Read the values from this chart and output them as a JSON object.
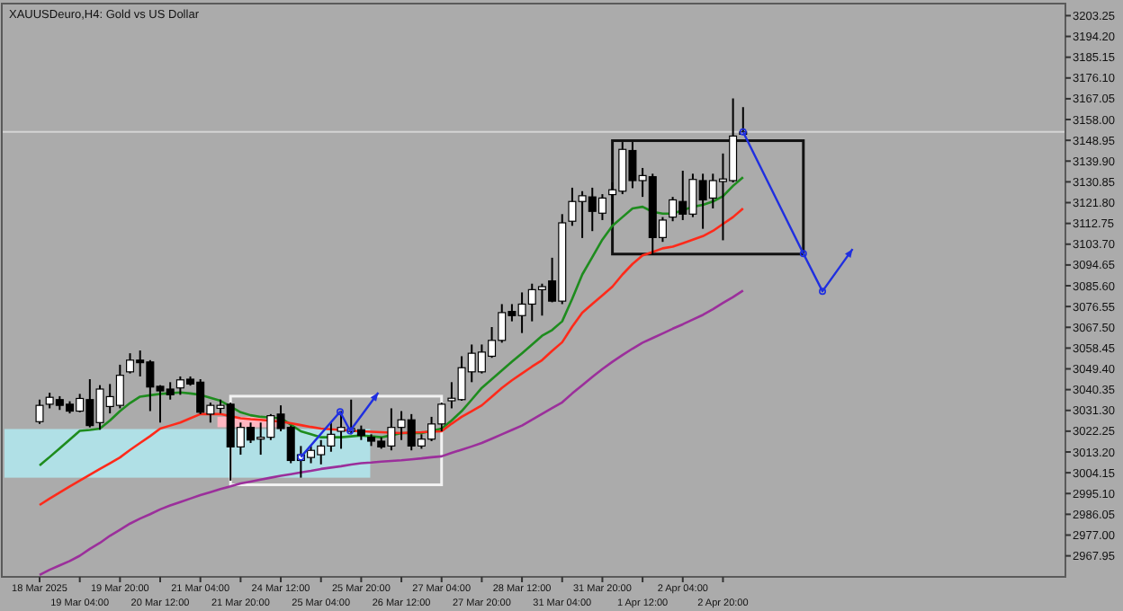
{
  "chart_data": {
    "type": "candlestick",
    "title": "XAUUSDeuro,H4: Gold vs US Dollar",
    "categories": [
      "18 Mar 2025",
      null,
      null,
      null,
      "19 Mar 04:00",
      null,
      null,
      null,
      "19 Mar 20:00",
      null,
      null,
      null,
      "20 Mar 12:00",
      null,
      null,
      null,
      "21 Mar 04:00",
      null,
      null,
      null,
      "21 Mar 20:00",
      null,
      null,
      null,
      "24 Mar 12:00",
      null,
      null,
      null,
      "25 Mar 04:00",
      null,
      null,
      null,
      "25 Mar 20:00",
      null,
      null,
      null,
      "26 Mar 12:00",
      null,
      null,
      null,
      "27 Mar 04:00",
      null,
      null,
      null,
      "27 Mar 20:00",
      null,
      null,
      null,
      "28 Mar 12:00",
      null,
      null,
      null,
      "31 Mar 04:00",
      null,
      null,
      null,
      "31 Mar 20:00",
      null,
      null,
      null,
      "1 Apr 12:00",
      null,
      null,
      null,
      "2 Apr 04:00",
      null,
      null,
      null,
      "2 Apr 20:00",
      null,
      null,
      null,
      null,
      null,
      null,
      null,
      null,
      null,
      null,
      null,
      null,
      null,
      null,
      null,
      null,
      null,
      null,
      null,
      null,
      null,
      null,
      null,
      null,
      null,
      null,
      null,
      null,
      null,
      null,
      null,
      null,
      null
    ],
    "ohlc": [
      [
        3026.4,
        3036.0,
        3025.4,
        3033.5
      ],
      [
        3034.0,
        3039.0,
        3032.2,
        3037.0
      ],
      [
        3036.0,
        3037.5,
        3031.5,
        3033.5
      ],
      [
        3034.0,
        3035.3,
        3030.0,
        3031.0
      ],
      [
        3031.0,
        3038.5,
        3030.5,
        3036.5
      ],
      [
        3036.0,
        3044.9,
        3023.9,
        3024.7
      ],
      [
        3026.0,
        3042.3,
        3022.9,
        3040.6
      ],
      [
        3033.0,
        3042.8,
        3030.0,
        3037.3
      ],
      [
        3033.5,
        3051.2,
        3032.2,
        3046.6
      ],
      [
        3048.1,
        3056.2,
        3047.4,
        3053.2
      ],
      [
        3053.2,
        3057.4,
        3046.1,
        3052.1
      ],
      [
        3052.4,
        3053.2,
        3031.0,
        3041.5
      ],
      [
        3041.8,
        3042.3,
        3026.0,
        3039.8
      ],
      [
        3040.6,
        3043.6,
        3036.0,
        3038.1
      ],
      [
        3041.1,
        3046.1,
        3038.1,
        3044.6
      ],
      [
        3044.9,
        3046.1,
        3042.1,
        3042.8
      ],
      [
        3043.6,
        3044.9,
        3029.7,
        3030.5
      ],
      [
        3029.7,
        3034.7,
        3026.0,
        3033.5
      ],
      [
        3032.2,
        3036.0,
        3030.0,
        3033.5
      ],
      [
        3034.0,
        3034.7,
        3000.7,
        3015.4
      ],
      [
        3015.4,
        3026.0,
        3012.0,
        3023.9
      ],
      [
        3023.9,
        3026.0,
        3017.1,
        3018.4
      ],
      [
        3018.8,
        3026.0,
        3012.0,
        3019.6
      ],
      [
        3019.6,
        3029.7,
        3018.4,
        3029.0
      ],
      [
        3029.7,
        3033.5,
        3022.2,
        3023.4
      ],
      [
        3023.9,
        3024.7,
        3008.3,
        3009.5
      ],
      [
        3009.5,
        3015.8,
        3002.0,
        3012.0
      ],
      [
        3010.8,
        3015.8,
        3008.3,
        3013.9
      ],
      [
        3012.0,
        3018.4,
        3007.8,
        3015.8
      ],
      [
        3015.8,
        3026.0,
        3013.3,
        3020.9
      ],
      [
        3022.2,
        3031.0,
        3014.6,
        3023.9
      ],
      [
        3022.2,
        3036.0,
        3020.9,
        3023.4
      ],
      [
        3022.9,
        3024.7,
        3018.4,
        3020.4
      ],
      [
        3019.6,
        3020.9,
        3015.8,
        3017.9
      ],
      [
        3017.9,
        3019.6,
        3014.6,
        3015.4
      ],
      [
        3015.8,
        3032.2,
        3013.9,
        3023.9
      ],
      [
        3023.9,
        3031.0,
        3018.4,
        3027.2
      ],
      [
        3027.2,
        3029.7,
        3013.9,
        3015.8
      ],
      [
        3015.8,
        3020.9,
        3014.6,
        3018.8
      ],
      [
        3018.8,
        3028.5,
        3017.9,
        3025.4
      ],
      [
        3025.4,
        3034.7,
        3022.2,
        3034.0
      ],
      [
        3035.5,
        3043.6,
        3032.2,
        3036.6
      ],
      [
        3036.0,
        3054.9,
        3035.5,
        3049.9
      ],
      [
        3048.1,
        3060.0,
        3043.6,
        3056.2
      ],
      [
        3048.1,
        3060.0,
        3047.4,
        3056.7
      ],
      [
        3054.9,
        3067.6,
        3054.2,
        3061.8
      ],
      [
        3061.8,
        3077.6,
        3060.8,
        3073.9
      ],
      [
        3074.4,
        3077.6,
        3070.1,
        3072.6
      ],
      [
        3072.6,
        3082.7,
        3065.0,
        3077.6
      ],
      [
        3077.6,
        3086.5,
        3070.1,
        3083.9
      ],
      [
        3083.9,
        3086.5,
        3072.6,
        3085.2
      ],
      [
        3087.7,
        3097.8,
        3078.4,
        3078.9
      ],
      [
        3078.9,
        3116.8,
        3077.6,
        3113.0
      ],
      [
        3113.7,
        3128.3,
        3111.7,
        3122.3
      ],
      [
        3122.3,
        3126.8,
        3106.4,
        3124.8
      ],
      [
        3124.3,
        3128.3,
        3109.4,
        3118.0
      ],
      [
        3117.2,
        3125.5,
        3114.2,
        3123.8
      ],
      [
        3125.3,
        3130.6,
        3114.0,
        3127.4
      ],
      [
        3126.8,
        3148.2,
        3125.5,
        3145.0
      ],
      [
        3144.5,
        3148.2,
        3128.1,
        3131.4
      ],
      [
        3131.4,
        3136.9,
        3124.3,
        3133.6
      ],
      [
        3133.1,
        3134.4,
        3099.1,
        3106.6
      ],
      [
        3106.6,
        3115.5,
        3104.7,
        3114.2
      ],
      [
        3115.5,
        3124.3,
        3113.7,
        3123.0
      ],
      [
        3122.3,
        3135.7,
        3114.2,
        3116.8
      ],
      [
        3116.8,
        3134.4,
        3115.5,
        3131.9
      ],
      [
        3131.4,
        3134.4,
        3110.4,
        3123.0
      ],
      [
        3123.8,
        3134.4,
        3119.3,
        3131.4
      ],
      [
        3131.0,
        3143.2,
        3105.4,
        3132.1
      ],
      [
        3131.4,
        3167.2,
        3130.6,
        3150.8
      ],
      [
        3151.6,
        3163.4,
        3151.6,
        3152.6
      ],
      null,
      null,
      null,
      null,
      null,
      null,
      null,
      null,
      null,
      null,
      null,
      null,
      null,
      null,
      null,
      null,
      null,
      null,
      null,
      null,
      null,
      null,
      null,
      null,
      null,
      null,
      null,
      null,
      null,
      null,
      null
    ],
    "series": [
      {
        "type": "line",
        "color": "#1e8c1e",
        "values": [
          3007.3,
          3011.0,
          3014.8,
          3018.6,
          3022.4,
          3022.8,
          3023.4,
          3026.9,
          3031.0,
          3034.5,
          3037.3,
          3037.9,
          3038.5,
          3038.8,
          3039.1,
          3038.7,
          3038.1,
          3036.8,
          3035.5,
          3033.0,
          3030.5,
          3029.2,
          3028.5,
          3028.2,
          3027.9,
          3025.1,
          3022.2,
          3020.9,
          3019.6,
          3019.6,
          3019.6,
          3020.0,
          3020.4,
          3020.0,
          3019.6,
          3020.5,
          3021.4,
          3021.4,
          3021.4,
          3022.4,
          3023.4,
          3026.9,
          3031.0,
          3036.0,
          3041.1,
          3044.9,
          3048.7,
          3052.5,
          3056.2,
          3060.0,
          3063.8,
          3066.3,
          3070.1,
          3079.9,
          3090.5,
          3098.1,
          3105.7,
          3111.7,
          3115.5,
          3119.3,
          3120.0,
          3117.8,
          3117.0,
          3117.0,
          3118.5,
          3120.0,
          3120.8,
          3122.3,
          3124.6,
          3129.1,
          3132.9,
          null,
          null,
          null,
          null,
          null,
          null,
          null,
          null,
          null,
          null,
          null,
          null,
          null,
          null,
          null,
          null,
          null,
          null,
          null,
          null,
          null,
          null,
          null,
          null,
          null,
          null,
          null,
          null,
          null,
          null,
          null
        ]
      },
      {
        "type": "line",
        "color": "#ff2a1a",
        "values": [
          2990.1,
          2992.9,
          2995.5,
          2998.2,
          3000.7,
          3003.3,
          3005.8,
          3008.3,
          3010.8,
          3014.1,
          3017.1,
          3020.1,
          3023.4,
          3024.7,
          3026.0,
          3027.9,
          3029.7,
          3029.7,
          3029.7,
          3028.8,
          3027.9,
          3027.5,
          3027.2,
          3026.8,
          3026.4,
          3025.7,
          3024.9,
          3024.1,
          3023.4,
          3023.1,
          3022.8,
          3022.5,
          3022.2,
          3022.0,
          3021.8,
          3021.6,
          3021.4,
          3021.7,
          3021.8,
          3022.0,
          3022.2,
          3025.5,
          3028.5,
          3031.0,
          3033.5,
          3037.3,
          3041.1,
          3044.4,
          3047.4,
          3050.4,
          3053.2,
          3057.2,
          3061.0,
          3067.8,
          3073.9,
          3077.7,
          3081.4,
          3085.2,
          3090.5,
          3095.1,
          3098.8,
          3100.3,
          3101.9,
          3102.6,
          3104.1,
          3105.7,
          3107.2,
          3109.5,
          3112.5,
          3115.5,
          3119.3,
          null,
          null,
          null,
          null,
          null,
          null,
          null,
          null,
          null,
          null,
          null,
          null,
          null,
          null,
          null,
          null,
          null,
          null,
          null,
          null,
          null,
          null,
          null,
          null,
          null,
          null,
          null,
          null,
          null,
          null,
          null
        ]
      },
      {
        "type": "line",
        "color": "#9b2f9b",
        "values": [
          2959.6,
          2961.9,
          2963.8,
          2965.7,
          2968.0,
          2971.0,
          2973.6,
          2976.7,
          2979.3,
          2982.0,
          2984.2,
          2986.1,
          2988.2,
          2989.9,
          2991.4,
          2992.9,
          2994.4,
          2995.7,
          2997.1,
          2998.2,
          2999.5,
          3000.3,
          3001.2,
          3002.0,
          3002.8,
          3003.5,
          3004.3,
          3005.0,
          3005.8,
          3006.4,
          3007.0,
          3007.7,
          3008.3,
          3008.6,
          3009.0,
          3009.3,
          3009.6,
          3010.0,
          3010.4,
          3010.9,
          3011.3,
          3012.8,
          3014.2,
          3015.6,
          3017.1,
          3019.0,
          3020.9,
          3022.8,
          3024.7,
          3027.2,
          3029.8,
          3032.3,
          3034.8,
          3038.7,
          3042.3,
          3045.9,
          3049.3,
          3052.5,
          3055.4,
          3058.2,
          3060.8,
          3062.8,
          3064.8,
          3066.9,
          3068.8,
          3070.9,
          3072.9,
          3075.4,
          3078.1,
          3080.7,
          3083.5,
          null,
          null,
          null,
          null,
          null,
          null,
          null,
          null,
          null,
          null,
          null,
          null,
          null,
          null,
          null,
          null,
          null,
          null,
          null,
          null,
          null,
          null,
          null,
          null,
          null,
          null,
          null,
          null,
          null,
          null,
          null
        ]
      }
    ],
    "ylim": [
      2958.8,
      3208.5
    ],
    "yticks": [
      2967.95,
      {
        "value": 2977,
        "label": "2977.00"
      },
      2986.05,
      {
        "value": 2995.1,
        "label": "2995.10"
      },
      3004.15,
      {
        "value": 3013.2,
        "label": "3013.20"
      },
      3022.25,
      {
        "value": 3031.3,
        "label": "3031.30"
      },
      3040.35,
      {
        "value": 3049.4,
        "label": "3049.40"
      },
      3058.45,
      {
        "value": 3067.5,
        "label": "3067.50"
      },
      3076.55,
      {
        "value": 3085.6,
        "label": "3085.60"
      },
      3094.65,
      {
        "value": 3103.7,
        "label": "3103.70"
      },
      3112.75,
      {
        "value": 3121.8,
        "label": "3121.80"
      },
      3130.85,
      {
        "value": 3139.9,
        "label": "3139.90"
      },
      3148.95,
      {
        "value": 3158,
        "label": "3158.00"
      },
      3167.05,
      {
        "value": 3176.1,
        "label": "3176.10"
      },
      3185.15,
      {
        "value": 3194.2,
        "label": "3194.20"
      },
      3203.25
    ],
    "ref_lines": [
      {
        "axis": "y",
        "value": 3152.6,
        "color": "#d4d4d4"
      }
    ]
  }
}
